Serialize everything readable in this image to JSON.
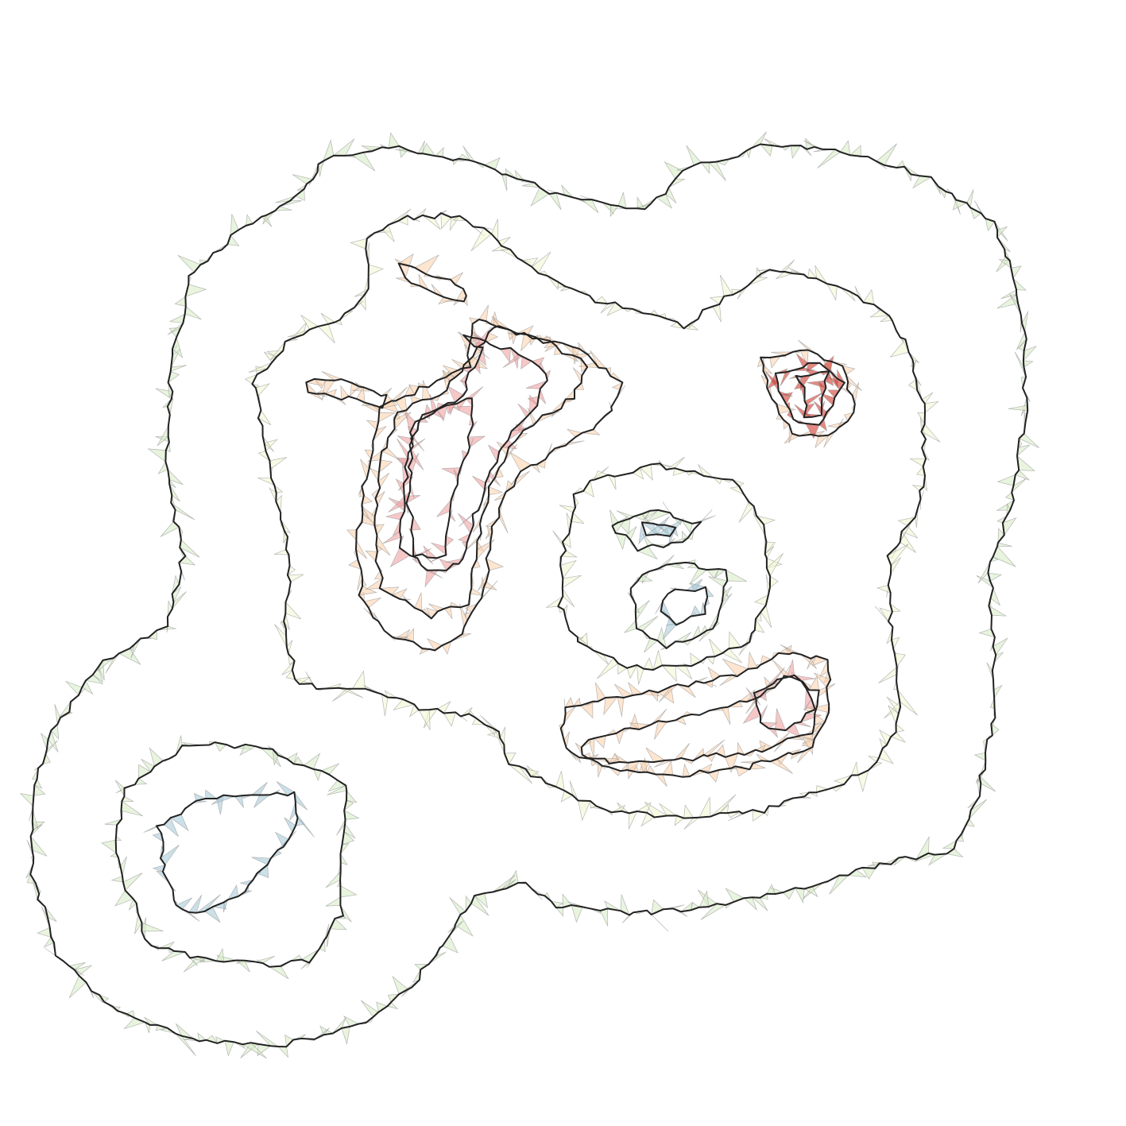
{
  "chart_data": {
    "type": "contour",
    "colors": [
      "#d9edc8",
      "#f2f7d4",
      "#fbd3b0",
      "#f0a2a2",
      "#cf3a2e",
      "#a9cbd9"
    ]
  }
}
